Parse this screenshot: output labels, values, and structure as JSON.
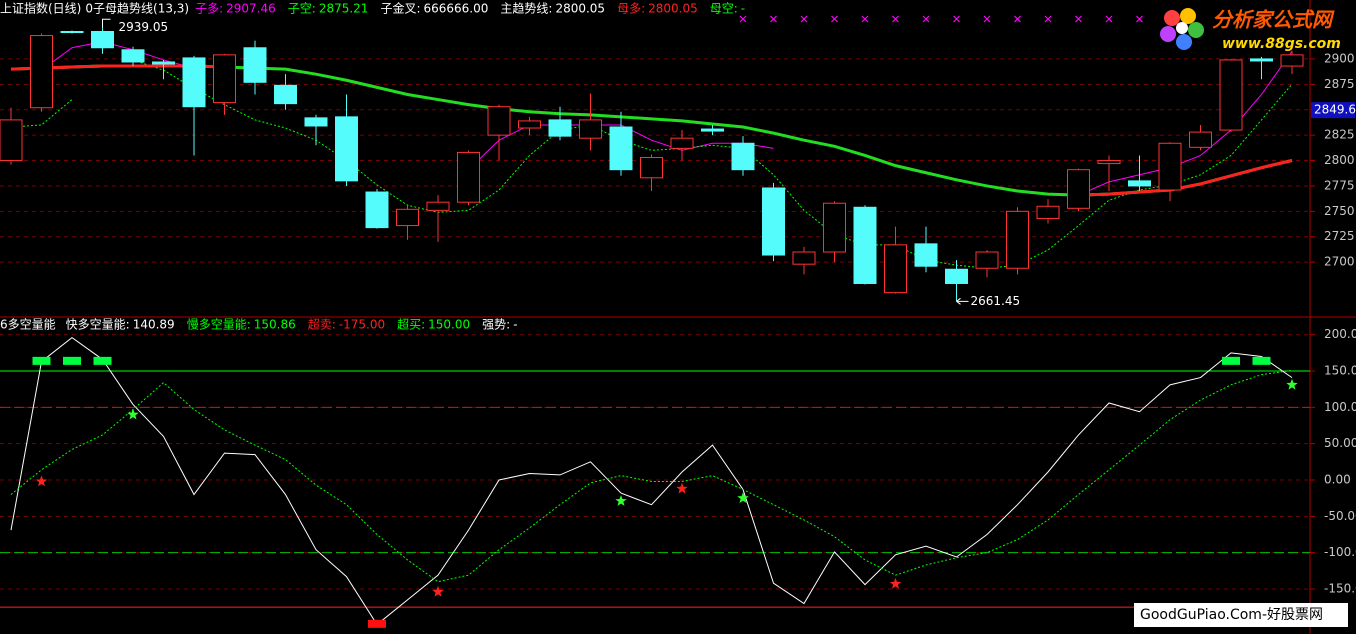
{
  "chart_data": [
    {
      "type": "candlestick",
      "title": "上证指数(日线)",
      "subtitle": "0子母趋势线(13,3)",
      "ylim": [
        2647,
        2958
      ],
      "yticks": [
        2700,
        2725,
        2750,
        2775,
        2800,
        2825,
        2850,
        2875,
        2900
      ],
      "grid": true,
      "up_color": "#ff3232",
      "down_color": "#54fcfc",
      "last_price": 2849.6,
      "open": [
        2800,
        2852,
        2927,
        2927,
        2909,
        2897,
        2901,
        2857,
        2911,
        2874,
        2842,
        2843,
        2769,
        2736,
        2751,
        2759,
        2825,
        2832,
        2840,
        2822,
        2833,
        2783,
        2812,
        2831,
        2817,
        2773,
        2698,
        2710,
        2754,
        2670,
        2718,
        2693,
        2694,
        2694,
        2743,
        2753,
        2797,
        2780,
        2771,
        2813,
        2830,
        2900,
        2893
      ],
      "high": [
        2852,
        2925,
        2928,
        2939.05,
        2912,
        2899,
        2903,
        2905,
        2918,
        2885,
        2845,
        2865,
        2772,
        2757,
        2766,
        2810,
        2855,
        2843,
        2853,
        2866,
        2848,
        2806,
        2830,
        2835,
        2824,
        2778,
        2715,
        2760,
        2756,
        2735,
        2735,
        2702,
        2712,
        2754,
        2762,
        2792,
        2805,
        2805,
        2818,
        2835,
        2900,
        2902,
        2908
      ],
      "low": [
        2796,
        2848,
        2925,
        2905,
        2893,
        2880,
        2805,
        2845,
        2865,
        2850,
        2815,
        2775,
        2733,
        2722,
        2720,
        2756,
        2800,
        2825,
        2820,
        2810,
        2785,
        2770,
        2800,
        2825,
        2785,
        2701,
        2688,
        2700,
        2678,
        2669,
        2690,
        2661.45,
        2685,
        2688,
        2738,
        2750,
        2770,
        2770,
        2760,
        2810,
        2828,
        2880,
        2885
      ],
      "close": [
        2840,
        2923,
        2926,
        2911,
        2897,
        2895,
        2853,
        2904,
        2877,
        2856,
        2834,
        2780,
        2734,
        2752,
        2759,
        2808,
        2853,
        2839,
        2824,
        2840,
        2791,
        2803,
        2822,
        2829,
        2791,
        2707,
        2710,
        2758,
        2679,
        2717,
        2696,
        2679,
        2710,
        2750,
        2755,
        2791,
        2800,
        2775,
        2817,
        2828,
        2899,
        2898,
        2904
      ],
      "cross_marks": [
        false,
        false,
        false,
        false,
        false,
        false,
        false,
        false,
        false,
        false,
        false,
        false,
        false,
        false,
        false,
        false,
        false,
        false,
        false,
        false,
        false,
        false,
        false,
        false,
        true,
        true,
        true,
        true,
        true,
        true,
        true,
        true,
        true,
        true,
        true,
        true,
        true,
        true,
        false,
        false,
        false,
        false,
        false
      ],
      "cross_color": "#ff00ff",
      "series": [
        {
          "name": "子多:",
          "color": "#ff00ff",
          "current": 2907.46,
          "values": [
            null,
            2889,
            2911,
            2917,
            2909,
            2899,
            2891,
            null,
            null,
            null,
            null,
            null,
            null,
            null,
            null,
            2791,
            2820,
            2835,
            2835,
            2835,
            2835,
            2820,
            2810,
            2817,
            2817,
            2812,
            null,
            null,
            null,
            null,
            null,
            null,
            null,
            null,
            null,
            2766,
            2779,
            2786,
            2793,
            2805,
            2830,
            2865,
            2907.46
          ]
        },
        {
          "name": "子空:",
          "color": "#00ff00",
          "dashed": true,
          "current": 2875.21,
          "values": [
            2833,
            2835,
            2860,
            null,
            2899,
            2889,
            2871,
            2855,
            2840,
            2832,
            2820,
            2800,
            2776,
            2756,
            2749,
            2751,
            2771,
            2805,
            2830,
            2835,
            2820,
            2810,
            2812,
            2815,
            2812,
            2786,
            2751,
            2727,
            2717,
            2717,
            2702,
            2697,
            2694,
            2697,
            2712,
            2736,
            2761,
            2771,
            2776,
            2786,
            2805,
            2840,
            2875.21
          ]
        },
        {
          "name": "子金叉:",
          "color": "#ffffff",
          "current": {
            "value": 666666,
            "label": "666666.00"
          }
        },
        {
          "name": "主趋势线:",
          "color": "#ffffff",
          "line_color": "#22dd22",
          "width": 3,
          "current": 2800.05,
          "values": [
            2890,
            2891,
            2892,
            2893,
            2893,
            2893,
            2893,
            2892,
            2891,
            2890,
            2885,
            2879,
            2872,
            2865,
            2860,
            2855,
            2851,
            2848,
            2846,
            2845,
            2843,
            2841,
            2839,
            2836,
            2833,
            2827,
            2820,
            2814,
            2805,
            2795,
            2788,
            2781,
            2775,
            2770,
            2767,
            2766,
            2767,
            2769,
            2771,
            2777,
            2785,
            2793,
            2800.05
          ]
        },
        {
          "name": "母多:",
          "color": "#ff2020",
          "width": 3,
          "current": 2800.05,
          "values": [
            2890,
            2891,
            2892,
            2893,
            2893,
            2893,
            2893,
            2892,
            null,
            null,
            null,
            null,
            null,
            null,
            null,
            null,
            null,
            null,
            null,
            null,
            null,
            null,
            null,
            null,
            null,
            null,
            null,
            null,
            null,
            null,
            null,
            null,
            null,
            null,
            null,
            2766,
            2767,
            2769,
            2771,
            2777,
            2785,
            2793,
            2800.05
          ]
        },
        {
          "name": "母空:",
          "color": "#00ff00",
          "current": "-"
        }
      ]
    },
    {
      "type": "line",
      "title": "6多空量能",
      "ylim": [
        -212,
        223
      ],
      "grid": true,
      "yticks": [
        {
          "value": 200,
          "label": "200.0"
        },
        {
          "value": 150,
          "label": "150.0"
        },
        {
          "value": 100,
          "label": "100.0"
        },
        {
          "value": 50,
          "label": "50.00"
        },
        {
          "value": 0,
          "label": "0.00"
        },
        {
          "value": -50,
          "label": "-50.00"
        },
        {
          "value": -100,
          "label": "-100.0"
        },
        {
          "value": -150,
          "label": "-150.0"
        }
      ],
      "dashed_lines": [
        {
          "value": 100,
          "color": "#ff0000"
        },
        {
          "value": -100,
          "color": "#00c000"
        }
      ],
      "series": [
        {
          "name": "快多空量能:",
          "color": "#ffffff",
          "current": 140.89,
          "values": [
            -69,
            163,
            196,
            166,
            104,
            60,
            -20,
            37,
            35,
            -20,
            -96,
            -133,
            -199,
            -165,
            -131,
            -69,
            0,
            9,
            7,
            25,
            -18,
            -34,
            11,
            48,
            -13,
            -142,
            -170,
            -99,
            -144,
            -103,
            -91,
            -106,
            -75,
            -34,
            11,
            62,
            106,
            94,
            131,
            141,
            175,
            170,
            140.89
          ]
        },
        {
          "name": "慢多空量能:",
          "color": "#00ff00",
          "dashed": true,
          "current": 150.86,
          "values": [
            -20,
            14,
            42,
            62,
            97,
            134,
            97,
            69,
            48,
            28,
            -7,
            -34,
            -75,
            -110,
            -140,
            -131,
            -96,
            -66,
            -34,
            -4,
            6,
            -2,
            -2,
            6,
            -13,
            -34,
            -55,
            -78,
            -110,
            -131,
            -117,
            -107,
            -100,
            -82,
            -55,
            -20,
            14,
            48,
            83,
            110,
            131,
            145,
            150.86
          ]
        },
        {
          "name": "超卖:",
          "color": "#ff2020",
          "level": {
            "value": -175,
            "label": "-175.00"
          }
        },
        {
          "name": "超买:",
          "color": "#00ff00",
          "level": {
            "value": 150,
            "label": "150.00"
          }
        },
        {
          "name": "强势:",
          "color": "#ffffff",
          "current": "-"
        }
      ],
      "green_blocks": [
        null,
        164,
        164,
        164,
        null,
        null,
        null,
        null,
        null,
        null,
        null,
        null,
        null,
        null,
        null,
        null,
        null,
        null,
        null,
        null,
        null,
        null,
        null,
        null,
        null,
        null,
        null,
        null,
        null,
        null,
        null,
        null,
        null,
        null,
        null,
        null,
        null,
        null,
        null,
        null,
        164,
        164,
        null
      ],
      "red_blocks": [
        null,
        null,
        null,
        null,
        null,
        null,
        null,
        null,
        null,
        null,
        null,
        null,
        -198,
        null,
        null,
        null,
        null,
        null,
        null,
        null,
        null,
        null,
        null,
        null,
        null,
        null,
        null,
        null,
        null,
        null,
        null,
        null,
        null,
        null,
        null,
        null,
        null,
        null,
        null,
        null,
        null,
        null,
        null
      ],
      "red_stars": [
        null,
        -2,
        null,
        null,
        null,
        null,
        null,
        null,
        null,
        null,
        null,
        null,
        null,
        null,
        -154,
        null,
        null,
        null,
        null,
        null,
        null,
        null,
        -12,
        null,
        null,
        null,
        null,
        null,
        null,
        -143,
        null,
        null,
        null,
        null,
        null,
        null,
        null,
        null,
        null,
        null,
        null,
        null,
        null
      ],
      "green_stars": [
        null,
        null,
        null,
        null,
        90,
        null,
        null,
        null,
        null,
        null,
        null,
        null,
        null,
        null,
        null,
        null,
        null,
        null,
        null,
        null,
        -29,
        null,
        null,
        null,
        -25,
        null,
        null,
        null,
        null,
        null,
        null,
        null,
        null,
        null,
        null,
        null,
        null,
        null,
        null,
        null,
        null,
        null,
        131
      ]
    }
  ],
  "branding": {
    "logo": "分析家公式网",
    "url": "www.88gs.com",
    "watermark": "GoodGuPiao.Com-好股票网"
  }
}
